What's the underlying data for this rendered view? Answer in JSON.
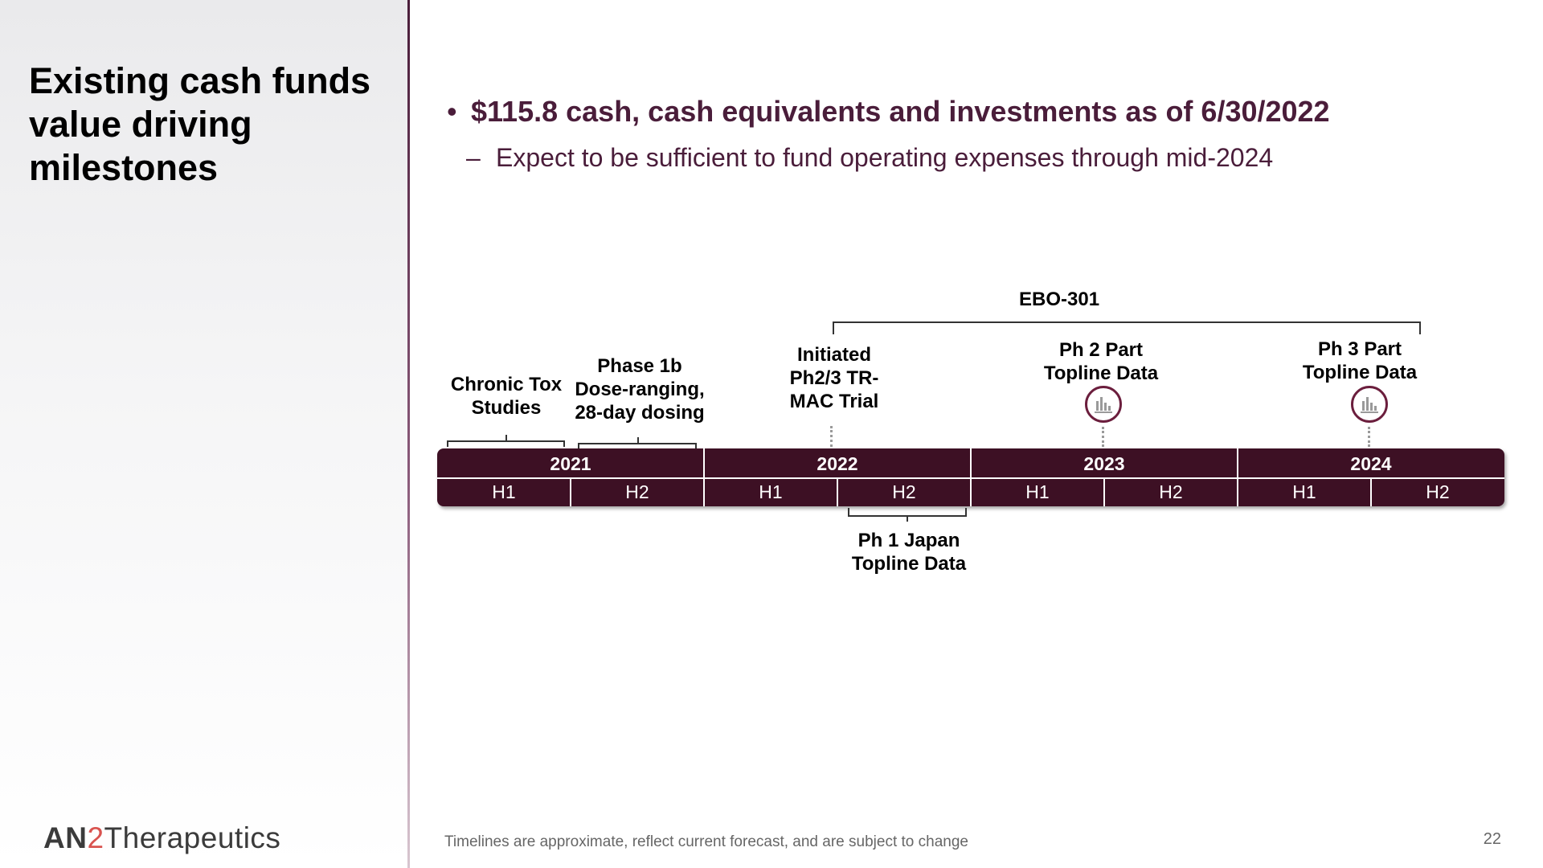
{
  "title": "Existing cash funds value driving milestones",
  "logo": {
    "an": "AN",
    "two": "2",
    "thera": "Therapeutics"
  },
  "bullet": {
    "marker": "•",
    "text": "$115.8 cash, cash equivalents and investments as of 6/30/2022"
  },
  "sub_bullet": {
    "marker": "–",
    "text": "Expect to be sufficient to fund operating expenses through mid-2024"
  },
  "timeline": {
    "program_label": "EBO-301",
    "years": [
      "2021",
      "2022",
      "2023",
      "2024"
    ],
    "halves": [
      "H1",
      "H2",
      "H1",
      "H2",
      "H1",
      "H2",
      "H1",
      "H2"
    ],
    "milestones": {
      "chronic_tox": [
        "Chronic Tox",
        "Studies"
      ],
      "phase1b": [
        "Phase 1b",
        "Dose-ranging,",
        "28-day dosing"
      ],
      "initiated": [
        "Initiated",
        "Ph2/3 TR-",
        "MAC Trial"
      ],
      "ph2_topline": [
        "Ph 2 Part",
        "Topline Data"
      ],
      "ph3_topline": [
        "Ph 3 Part",
        "Topline Data"
      ],
      "japan": [
        "Ph 1 Japan",
        "Topline Data"
      ]
    }
  },
  "footnote": "Timelines are approximate, reflect current forecast, and are subject to change",
  "page_number": "22",
  "colors": {
    "brand": "#3d1024",
    "accent_text": "#4a1d3a",
    "logo_two": "#d9534f"
  },
  "icons": [
    "bar-chart-icon"
  ]
}
